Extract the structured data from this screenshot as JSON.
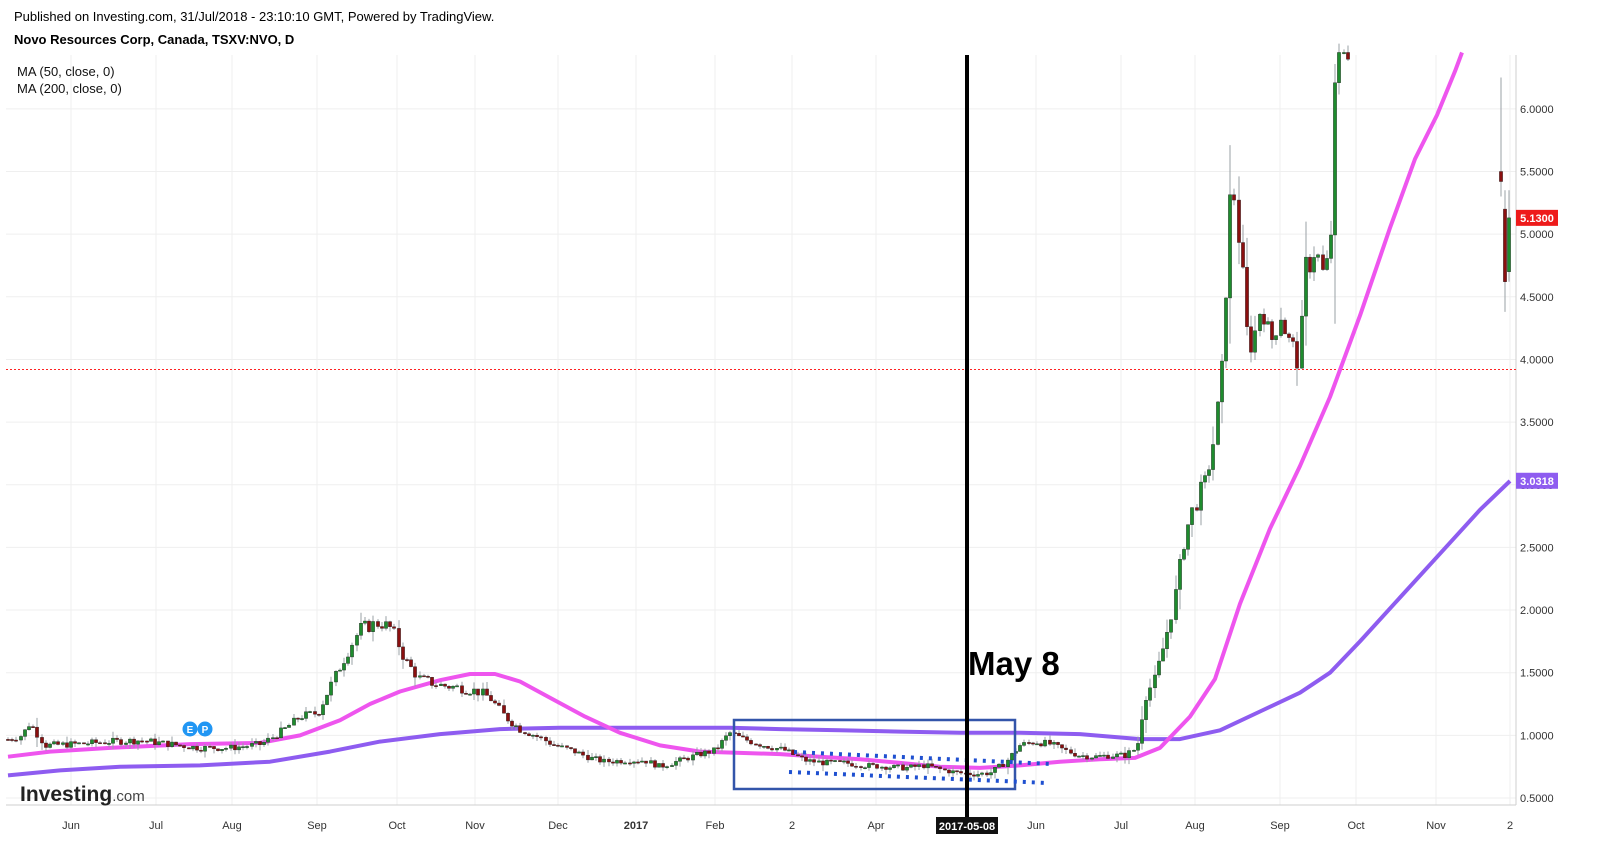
{
  "header": {
    "published": "Published on Investing.com, 31/Jul/2018 - 23:10:10 GMT, Powered by TradingView.",
    "title": "Novo Resources Corp, Canada, TSXV:NVO, D"
  },
  "indicators": [
    "MA (50, close, 0)",
    "MA (200, close, 0)"
  ],
  "logo": {
    "text": "Investing",
    "suffix": ".com"
  },
  "annotation": {
    "label": "May 8",
    "date_badge": "2017-05-08"
  },
  "event_badges": [
    "E",
    "P"
  ],
  "colors": {
    "up": "#1e8c2e",
    "down": "#8b0f0f",
    "ma50": "#ee55ee",
    "ma200": "#8e5cf0",
    "price_line": "#ff2222",
    "box": "#3355aa",
    "dots": "#1f50d0",
    "badge": "#2196f3"
  },
  "chart_data": {
    "type": "candlestick",
    "symbol": "TSXV:NVO",
    "interval": "D",
    "y_axis_ticks": [
      "0.5000",
      "1.0000",
      "1.5000",
      "2.0000",
      "2.5000",
      "3.0000",
      "3.5000",
      "4.0000",
      "4.5000",
      "5.0000",
      "5.5000",
      "6.0000"
    ],
    "ylim": [
      0.43,
      6.4
    ],
    "x_axis_ticks": [
      "Jun",
      "Jul",
      "Aug",
      "Sep",
      "Oct",
      "Nov",
      "Dec",
      "2017",
      "Feb",
      "2",
      "Apr",
      "2017-05-08",
      "Jun",
      "Jul",
      "Aug",
      "Sep",
      "Oct",
      "Nov",
      "2"
    ],
    "last_price": "5.1300",
    "ma200_last": "3.0318",
    "reference_line_value": 3.92,
    "vertical_marker_date": "2017-05-08",
    "anchors": [
      [
        0,
        0.95
      ],
      [
        22,
        1.0
      ],
      [
        30,
        1.1
      ],
      [
        45,
        0.92
      ],
      [
        75,
        0.93
      ],
      [
        110,
        0.95
      ],
      [
        140,
        0.96
      ],
      [
        170,
        0.93
      ],
      [
        200,
        0.9
      ],
      [
        230,
        0.9
      ],
      [
        262,
        0.93
      ],
      [
        285,
        1.05
      ],
      [
        300,
        1.15
      ],
      [
        318,
        1.18
      ],
      [
        340,
        1.55
      ],
      [
        360,
        1.85
      ],
      [
        380,
        1.9
      ],
      [
        392,
        1.85
      ],
      [
        405,
        1.6
      ],
      [
        420,
        1.45
      ],
      [
        440,
        1.4
      ],
      [
        460,
        1.38
      ],
      [
        478,
        1.35
      ],
      [
        490,
        1.3
      ],
      [
        505,
        1.15
      ],
      [
        520,
        1.05
      ],
      [
        535,
        1.0
      ],
      [
        555,
        0.92
      ],
      [
        575,
        0.87
      ],
      [
        590,
        0.82
      ],
      [
        605,
        0.79
      ],
      [
        625,
        0.8
      ],
      [
        645,
        0.8
      ],
      [
        660,
        0.75
      ],
      [
        680,
        0.8
      ],
      [
        700,
        0.85
      ],
      [
        715,
        0.88
      ],
      [
        730,
        1.02
      ],
      [
        740,
        0.98
      ],
      [
        760,
        0.93
      ],
      [
        785,
        0.88
      ],
      [
        805,
        0.8
      ],
      [
        825,
        0.78
      ],
      [
        845,
        0.78
      ],
      [
        865,
        0.76
      ],
      [
        885,
        0.75
      ],
      [
        905,
        0.74
      ],
      [
        925,
        0.76
      ],
      [
        945,
        0.72
      ],
      [
        960,
        0.7
      ],
      [
        975,
        0.69
      ],
      [
        990,
        0.7
      ],
      [
        1005,
        0.78
      ],
      [
        1020,
        0.92
      ],
      [
        1035,
        0.95
      ],
      [
        1050,
        0.93
      ],
      [
        1065,
        0.88
      ],
      [
        1080,
        0.84
      ],
      [
        1095,
        0.83
      ],
      [
        1110,
        0.84
      ],
      [
        1125,
        0.84
      ],
      [
        1137,
        0.9
      ],
      [
        1145,
        1.3
      ],
      [
        1155,
        1.45
      ],
      [
        1165,
        1.75
      ],
      [
        1175,
        2.1
      ],
      [
        1185,
        2.6
      ],
      [
        1195,
        2.85
      ],
      [
        1205,
        3.0
      ],
      [
        1215,
        3.4
      ],
      [
        1222,
        3.9
      ],
      [
        1226,
        4.6
      ],
      [
        1232,
        5.5
      ],
      [
        1240,
        4.9
      ],
      [
        1248,
        4.1
      ],
      [
        1255,
        4.2
      ],
      [
        1262,
        4.5
      ],
      [
        1270,
        4.1
      ],
      [
        1280,
        4.4
      ],
      [
        1290,
        4.1
      ],
      [
        1300,
        4.0
      ],
      [
        1305,
        4.7
      ],
      [
        1315,
        4.9
      ],
      [
        1325,
        4.6
      ],
      [
        1332,
        5.1
      ],
      [
        1337,
        6.6
      ],
      [
        1345,
        6.6
      ],
      [
        1352,
        6.45
      ]
    ],
    "gap_after_x": 1352,
    "tail_candles": [
      {
        "x": 1501,
        "o": 5.5,
        "h": 6.25,
        "l": 5.3,
        "c": 5.42,
        "dir": "down"
      },
      {
        "x": 1505,
        "o": 5.2,
        "h": 5.35,
        "l": 4.38,
        "c": 4.62,
        "dir": "down"
      },
      {
        "x": 1509,
        "o": 4.7,
        "h": 5.35,
        "l": 4.62,
        "c": 5.13,
        "dir": "up"
      }
    ],
    "ma50": [
      [
        8,
        0.83
      ],
      [
        50,
        0.87
      ],
      [
        110,
        0.9
      ],
      [
        190,
        0.93
      ],
      [
        260,
        0.94
      ],
      [
        300,
        1.0
      ],
      [
        340,
        1.12
      ],
      [
        370,
        1.25
      ],
      [
        400,
        1.35
      ],
      [
        440,
        1.44
      ],
      [
        470,
        1.49
      ],
      [
        495,
        1.49
      ],
      [
        520,
        1.43
      ],
      [
        550,
        1.3
      ],
      [
        585,
        1.15
      ],
      [
        620,
        1.02
      ],
      [
        660,
        0.92
      ],
      [
        700,
        0.87
      ],
      [
        740,
        0.86
      ],
      [
        780,
        0.85
      ],
      [
        820,
        0.83
      ],
      [
        860,
        0.81
      ],
      [
        900,
        0.78
      ],
      [
        940,
        0.75
      ],
      [
        980,
        0.74
      ],
      [
        1020,
        0.76
      ],
      [
        1060,
        0.79
      ],
      [
        1100,
        0.81
      ],
      [
        1135,
        0.82
      ],
      [
        1160,
        0.9
      ],
      [
        1190,
        1.15
      ],
      [
        1215,
        1.45
      ],
      [
        1240,
        2.05
      ],
      [
        1270,
        2.65
      ],
      [
        1300,
        3.15
      ],
      [
        1330,
        3.7
      ],
      [
        1360,
        4.35
      ],
      [
        1390,
        5.05
      ],
      [
        1415,
        5.6
      ],
      [
        1437,
        5.95
      ],
      [
        1455,
        6.3
      ],
      [
        1462,
        6.45
      ]
    ],
    "ma200": [
      [
        8,
        0.68
      ],
      [
        60,
        0.72
      ],
      [
        120,
        0.75
      ],
      [
        200,
        0.76
      ],
      [
        270,
        0.79
      ],
      [
        330,
        0.87
      ],
      [
        380,
        0.95
      ],
      [
        440,
        1.01
      ],
      [
        500,
        1.05
      ],
      [
        560,
        1.06
      ],
      [
        620,
        1.06
      ],
      [
        680,
        1.06
      ],
      [
        730,
        1.06
      ],
      [
        780,
        1.05
      ],
      [
        840,
        1.04
      ],
      [
        900,
        1.03
      ],
      [
        960,
        1.02
      ],
      [
        1020,
        1.02
      ],
      [
        1080,
        1.01
      ],
      [
        1140,
        0.97
      ],
      [
        1180,
        0.97
      ],
      [
        1220,
        1.04
      ],
      [
        1260,
        1.19
      ],
      [
        1300,
        1.34
      ],
      [
        1330,
        1.5
      ],
      [
        1360,
        1.75
      ],
      [
        1400,
        2.1
      ],
      [
        1440,
        2.45
      ],
      [
        1480,
        2.8
      ],
      [
        1510,
        3.03
      ]
    ]
  }
}
